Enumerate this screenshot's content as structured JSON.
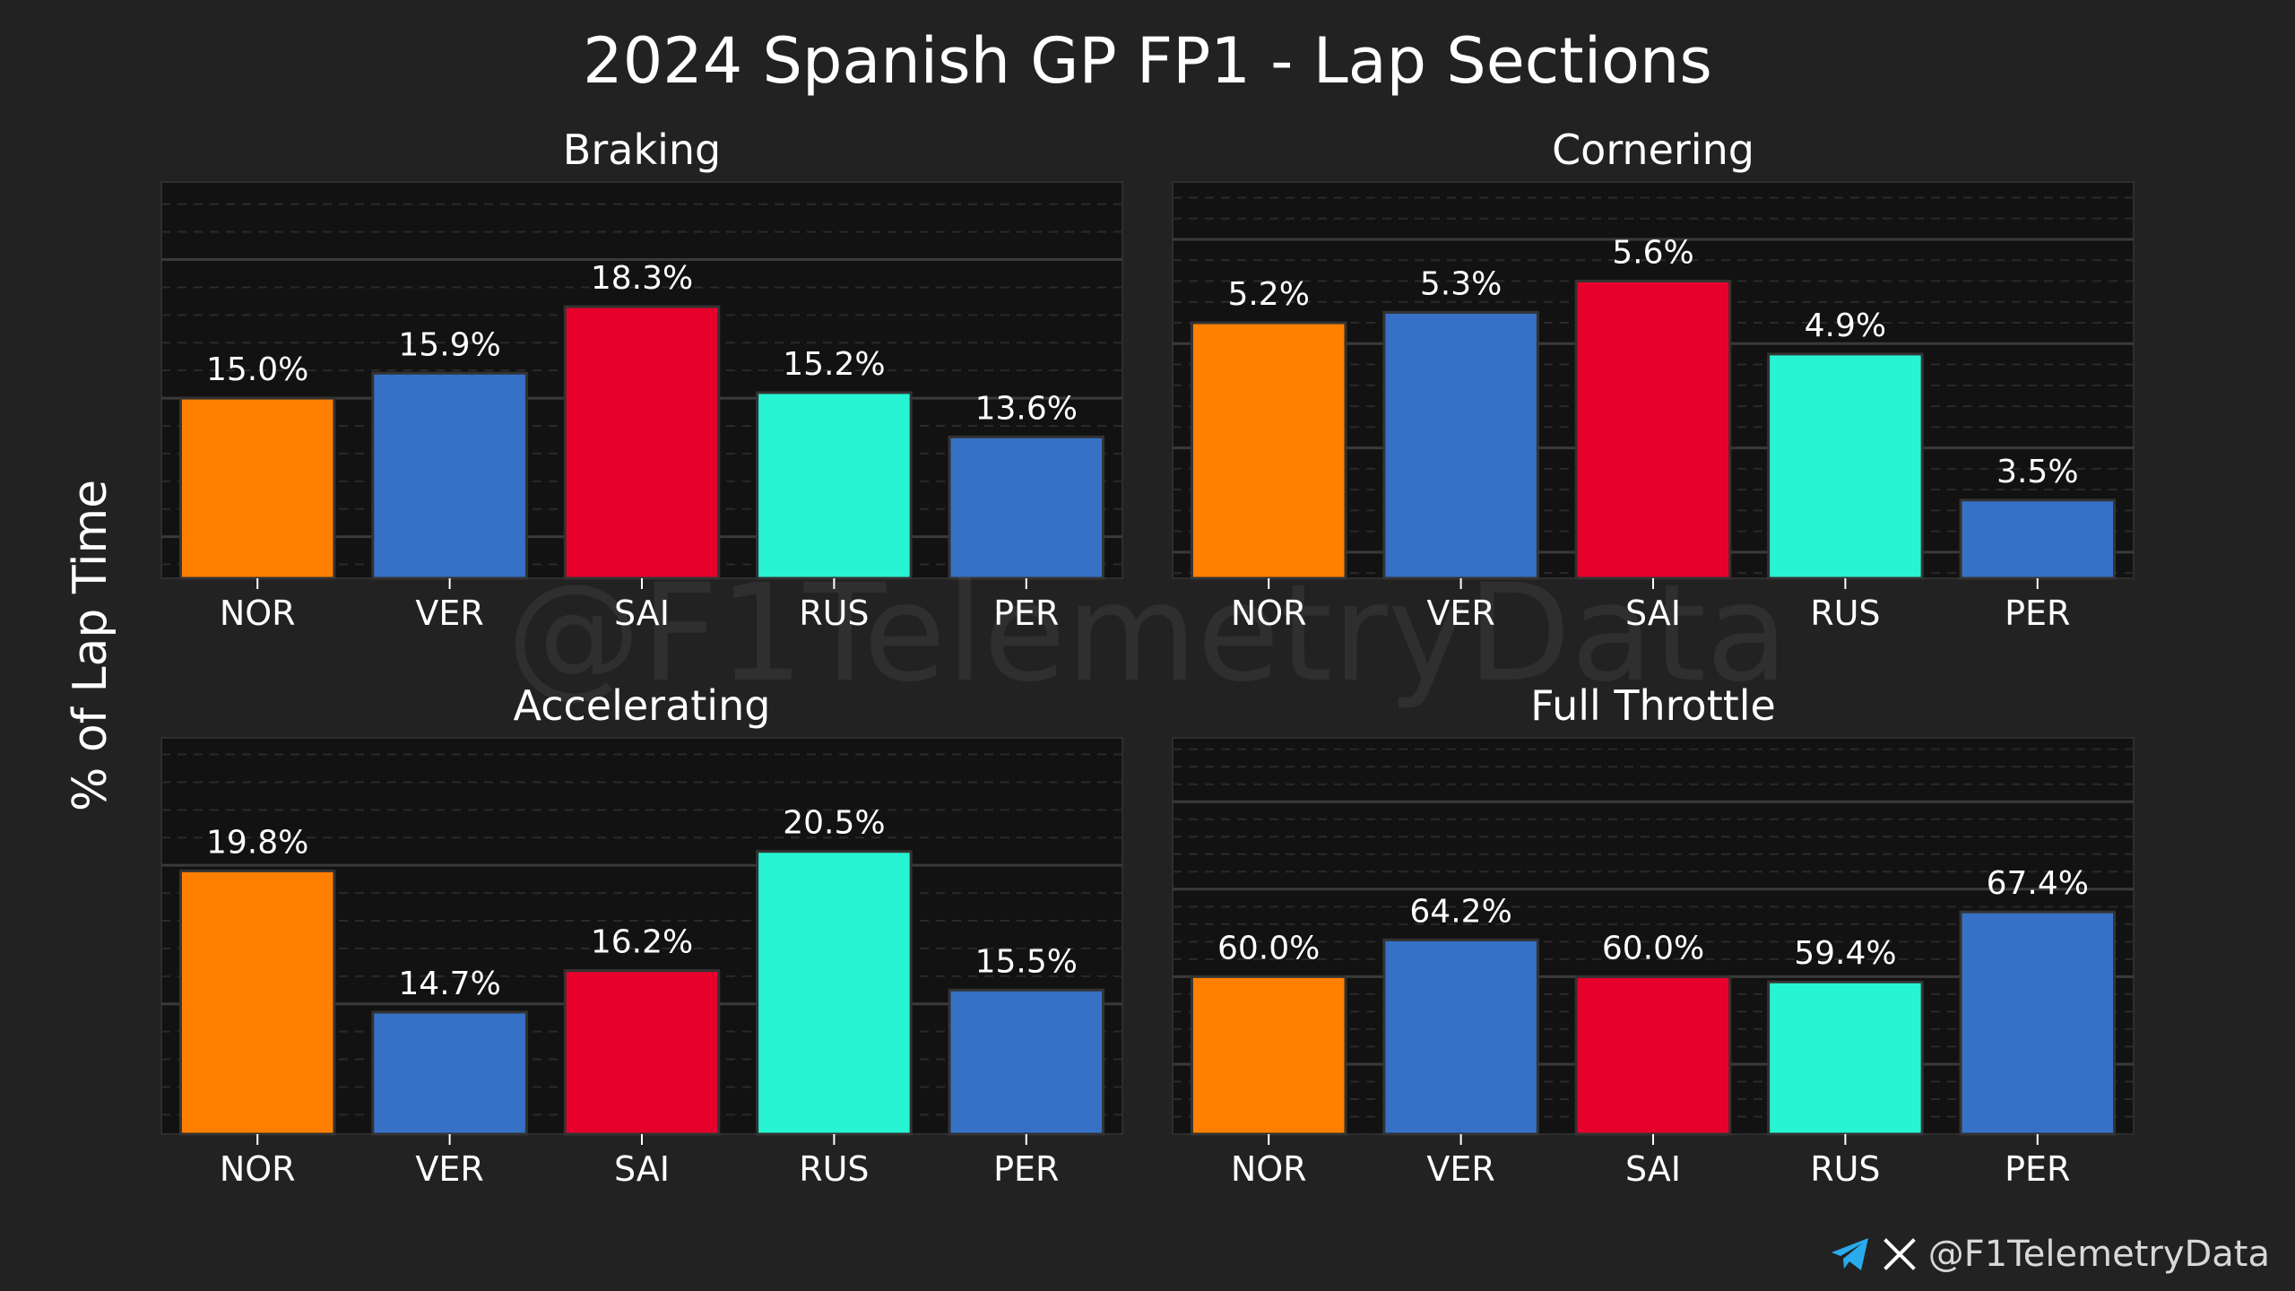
{
  "title": "2024 Spanish GP FP1 - Lap Sections",
  "ylabel": "% of Lap Time",
  "watermark": "@F1TelemetryData",
  "footer": {
    "handle": "@F1TelemetryData",
    "icons": [
      "telegram-icon",
      "x-icon"
    ]
  },
  "colors": {
    "background": "#222222",
    "panel": "#121212",
    "text": "#ffffff",
    "NOR": "#FF8000",
    "VER": "#3671C6",
    "SAI": "#E8002D",
    "RUS": "#27F4D2",
    "PER": "#3671C6"
  },
  "chart_data": [
    {
      "type": "bar",
      "title": "Braking",
      "categories": [
        "NOR",
        "VER",
        "SAI",
        "RUS",
        "PER"
      ],
      "values": [
        15.0,
        15.9,
        18.3,
        15.2,
        13.6
      ],
      "labels": [
        "15.0%",
        "15.9%",
        "18.3%",
        "15.2%",
        "13.6%"
      ],
      "ylim": [
        8.5,
        22.8
      ],
      "grid": true
    },
    {
      "type": "bar",
      "title": "Cornering",
      "categories": [
        "NOR",
        "VER",
        "SAI",
        "RUS",
        "PER"
      ],
      "values": [
        5.2,
        5.3,
        5.6,
        4.9,
        3.5
      ],
      "labels": [
        "5.2%",
        "5.3%",
        "5.6%",
        "4.9%",
        "3.5%"
      ],
      "ylim": [
        2.75,
        6.55
      ],
      "grid": true
    },
    {
      "type": "bar",
      "title": "Accelerating",
      "categories": [
        "NOR",
        "VER",
        "SAI",
        "RUS",
        "PER"
      ],
      "values": [
        19.8,
        14.7,
        16.2,
        20.5,
        15.5
      ],
      "labels": [
        "19.8%",
        "14.7%",
        "16.2%",
        "20.5%",
        "15.5%"
      ],
      "ylim": [
        10.3,
        24.6
      ],
      "grid": true
    },
    {
      "type": "bar",
      "title": "Full Throttle",
      "categories": [
        "NOR",
        "VER",
        "SAI",
        "RUS",
        "PER"
      ],
      "values": [
        60.0,
        64.2,
        60.0,
        59.4,
        67.4
      ],
      "labels": [
        "60.0%",
        "64.2%",
        "60.0%",
        "59.4%",
        "67.4%"
      ],
      "ylim": [
        42.0,
        87.3
      ],
      "grid": true
    }
  ]
}
